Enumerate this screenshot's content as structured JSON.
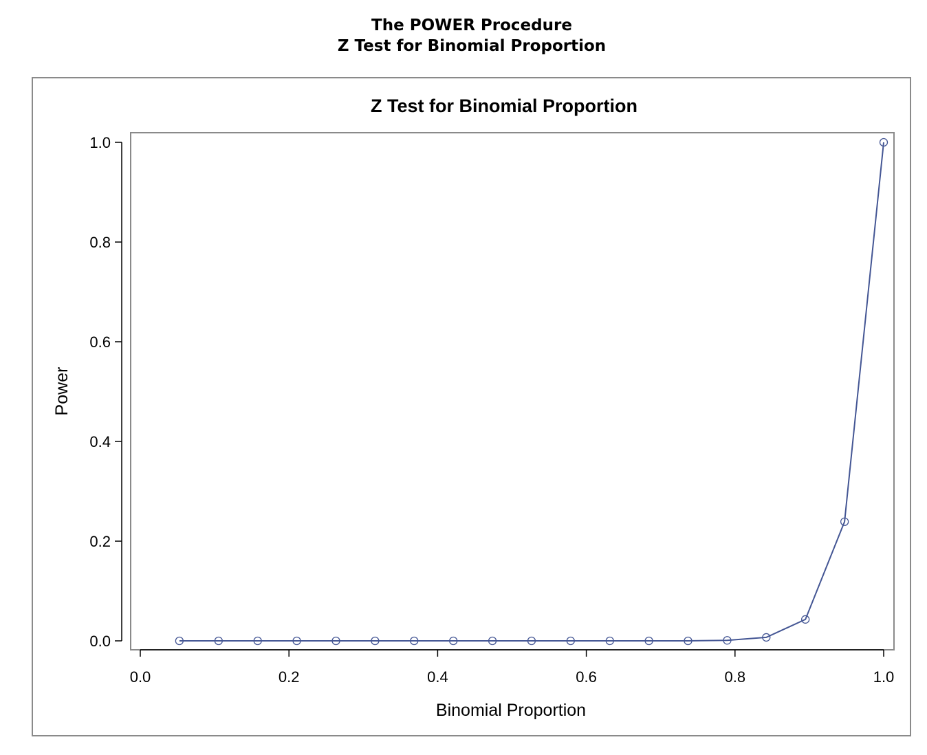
{
  "header": {
    "procedure_title": "The POWER Procedure",
    "subtitle": "Z Test for Binomial Proportion"
  },
  "chart_data": {
    "type": "line",
    "title": "Z Test for Binomial Proportion",
    "xlabel": "Binomial Proportion",
    "ylabel": "Power",
    "xlim": [
      0.0,
      1.0
    ],
    "ylim": [
      0.0,
      1.0
    ],
    "x_ticks": [
      "0.0",
      "0.2",
      "0.4",
      "0.6",
      "0.8",
      "1.0"
    ],
    "y_ticks": [
      "0.0",
      "0.2",
      "0.4",
      "0.6",
      "0.8",
      "1.0"
    ],
    "grid": false,
    "markers": "open-circle",
    "series": [
      {
        "color": "#445694",
        "x": [
          0.0526,
          0.1053,
          0.1579,
          0.2105,
          0.2632,
          0.3158,
          0.3684,
          0.4211,
          0.4737,
          0.5263,
          0.5789,
          0.6316,
          0.6842,
          0.7368,
          0.7895,
          0.8421,
          0.8947,
          0.9474,
          1.0
        ],
        "y": [
          0.0,
          0.0,
          0.0,
          0.0,
          0.0,
          0.0,
          0.0,
          0.0,
          0.0,
          0.0,
          0.0,
          0.0,
          0.0,
          0.0,
          0.001,
          0.007,
          0.043,
          0.239,
          1.0
        ]
      }
    ]
  }
}
